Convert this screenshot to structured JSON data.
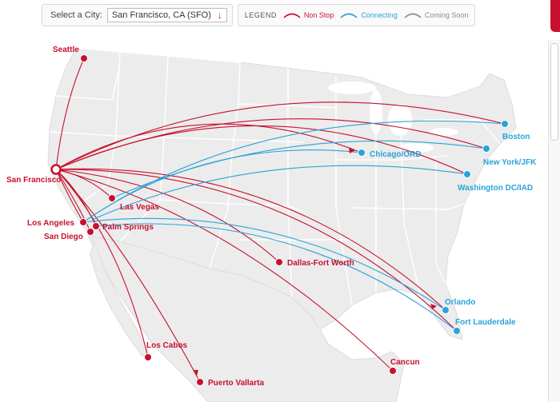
{
  "selector": {
    "label": "Select a City:",
    "value": "San Francisco, CA (SFO)"
  },
  "legend": {
    "title": "LEGEND",
    "items": [
      {
        "label": "Non Stop",
        "color": "#c8102e"
      },
      {
        "label": "Connecting",
        "color": "#2aa3d8"
      },
      {
        "label": "Coming Soon",
        "color": "#8c8c8c"
      }
    ]
  },
  "colors": {
    "nonstop": "#c8102e",
    "connecting": "#2aa3d8",
    "land": "#ececec",
    "border": "#ffffff"
  },
  "origin": {
    "name": "San Francisco"
  },
  "cities": [
    {
      "id": "seattle",
      "name": "Seattle",
      "type": "nonstop"
    },
    {
      "id": "las-vegas",
      "name": "Las Vegas",
      "type": "nonstop"
    },
    {
      "id": "los-angeles",
      "name": "Los Angeles",
      "type": "nonstop"
    },
    {
      "id": "palm-springs",
      "name": "Palm Springs",
      "type": "nonstop"
    },
    {
      "id": "san-diego",
      "name": "San Diego",
      "type": "nonstop"
    },
    {
      "id": "dallas",
      "name": "Dallas-Fort Worth",
      "type": "nonstop"
    },
    {
      "id": "los-cabos",
      "name": "Los Cabos",
      "type": "nonstop"
    },
    {
      "id": "puerto-vallarta",
      "name": "Puerto Vallarta",
      "type": "nonstop"
    },
    {
      "id": "cancun",
      "name": "Cancun",
      "type": "nonstop"
    },
    {
      "id": "chicago",
      "name": "Chicago/ORD",
      "type": "connecting"
    },
    {
      "id": "boston",
      "name": "Boston",
      "type": "connecting"
    },
    {
      "id": "new-york",
      "name": "New York/JFK",
      "type": "connecting"
    },
    {
      "id": "washington",
      "name": "Washington DC/IAD",
      "type": "connecting"
    },
    {
      "id": "orlando",
      "name": "Orlando",
      "type": "connecting"
    },
    {
      "id": "fort-lauderdale",
      "name": "Fort Lauderdale",
      "type": "connecting"
    }
  ]
}
